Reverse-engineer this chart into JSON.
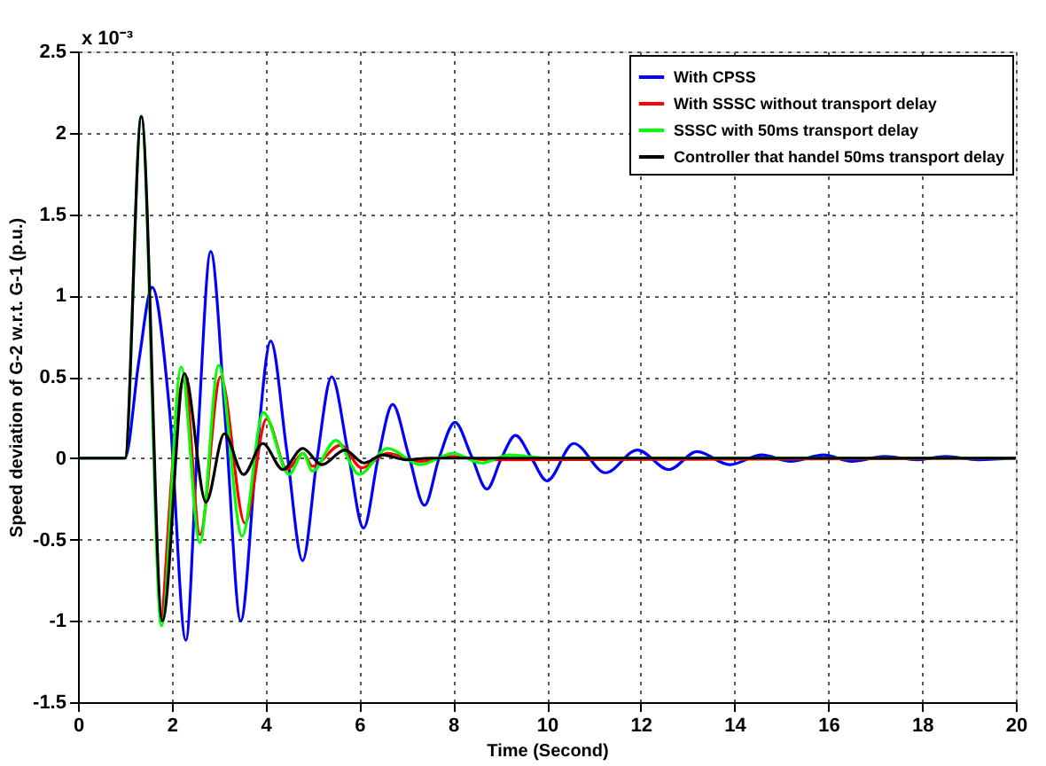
{
  "chart_data": {
    "type": "line",
    "xlabel": "Time (Second)",
    "ylabel": "Speed deviation of G-2 w.r.t. G-1 (p.u.)",
    "annotations": [
      "x 10⁻³"
    ],
    "xlim": [
      0,
      20
    ],
    "xticks": [
      0,
      2,
      4,
      6,
      8,
      10,
      12,
      14,
      16,
      18,
      20
    ],
    "ylim": [
      -1.5,
      2.5
    ],
    "yticks": [
      -1.5,
      -1,
      -0.5,
      0,
      0.5,
      1,
      1.5,
      2,
      2.5
    ],
    "grid": true,
    "legend": "top right",
    "line_style": "solid",
    "marker": "none",
    "series": [
      {
        "name": "With CPSS",
        "color": "#0000ff",
        "x": [
          0,
          1.0,
          1.3,
          1.58,
          1.95,
          2.3,
          2.55,
          2.83,
          3.15,
          3.47,
          3.8,
          4.11,
          4.45,
          4.79,
          5.1,
          5.41,
          5.75,
          6.09,
          6.4,
          6.71,
          7.05,
          7.39,
          7.7,
          8.04,
          8.38,
          8.72,
          9.03,
          9.33,
          9.67,
          10.0,
          10.57,
          11.25,
          11.93,
          12.6,
          13.2,
          13.9,
          14.58,
          15.2,
          15.9,
          16.5,
          17.2,
          17.9,
          18.5,
          19.2,
          20
        ],
        "values": [
          0,
          0,
          0.6,
          1.05,
          0.3,
          -1.12,
          0.1,
          1.27,
          0.2,
          -1.0,
          0.0,
          0.72,
          0.05,
          -0.63,
          0.0,
          0.5,
          0.05,
          -0.43,
          0.0,
          0.33,
          0.02,
          -0.29,
          0.0,
          0.22,
          0.02,
          -0.19,
          0.0,
          0.14,
          0.0,
          -0.14,
          0.09,
          -0.09,
          0.05,
          -0.07,
          0.04,
          -0.04,
          0.02,
          -0.02,
          0.02,
          -0.02,
          0.01,
          -0.01,
          0.01,
          -0.01,
          0
        ]
      },
      {
        "name": "With SSSC without transport delay",
        "color": "#ff0000",
        "x": [
          1.8,
          2.27,
          2.6,
          3.04,
          3.56,
          4.02,
          4.46,
          4.8,
          5.0,
          5.6,
          6.05,
          6.6,
          7.3,
          8.0,
          8.7,
          20
        ],
        "values": [
          -1.0,
          0.5,
          -0.47,
          0.5,
          -0.4,
          0.24,
          -0.07,
          0.03,
          -0.05,
          0.08,
          -0.06,
          0.03,
          -0.02,
          0.01,
          -0.01,
          0
        ]
      },
      {
        "name": "SSSC with 50ms transport delay",
        "color": "#00ff00",
        "x": [
          0,
          1.0,
          1.35,
          1.78,
          2.2,
          2.6,
          3.0,
          3.5,
          3.95,
          4.5,
          4.8,
          5.0,
          5.5,
          6.0,
          6.6,
          7.3,
          8.0,
          8.6,
          9.2,
          10.0,
          20
        ],
        "values": [
          0,
          0,
          2.1,
          -1.03,
          0.56,
          -0.52,
          0.57,
          -0.48,
          0.28,
          -0.1,
          0.03,
          -0.08,
          0.11,
          -0.1,
          0.06,
          -0.04,
          0.03,
          -0.03,
          0.02,
          0,
          0
        ]
      },
      {
        "name": "Controller that handel 50ms transport delay",
        "color": "#000000",
        "x": [
          0,
          1.0,
          1.35,
          1.8,
          2.27,
          2.73,
          3.12,
          3.53,
          3.94,
          4.37,
          4.79,
          5.2,
          5.69,
          6.1,
          6.5,
          7.0,
          7.5,
          20
        ],
        "values": [
          0,
          0,
          2.1,
          -1.0,
          0.52,
          -0.27,
          0.15,
          -0.1,
          0.09,
          -0.07,
          0.06,
          -0.04,
          0.05,
          -0.03,
          0.02,
          -0.01,
          0,
          0
        ]
      }
    ]
  }
}
